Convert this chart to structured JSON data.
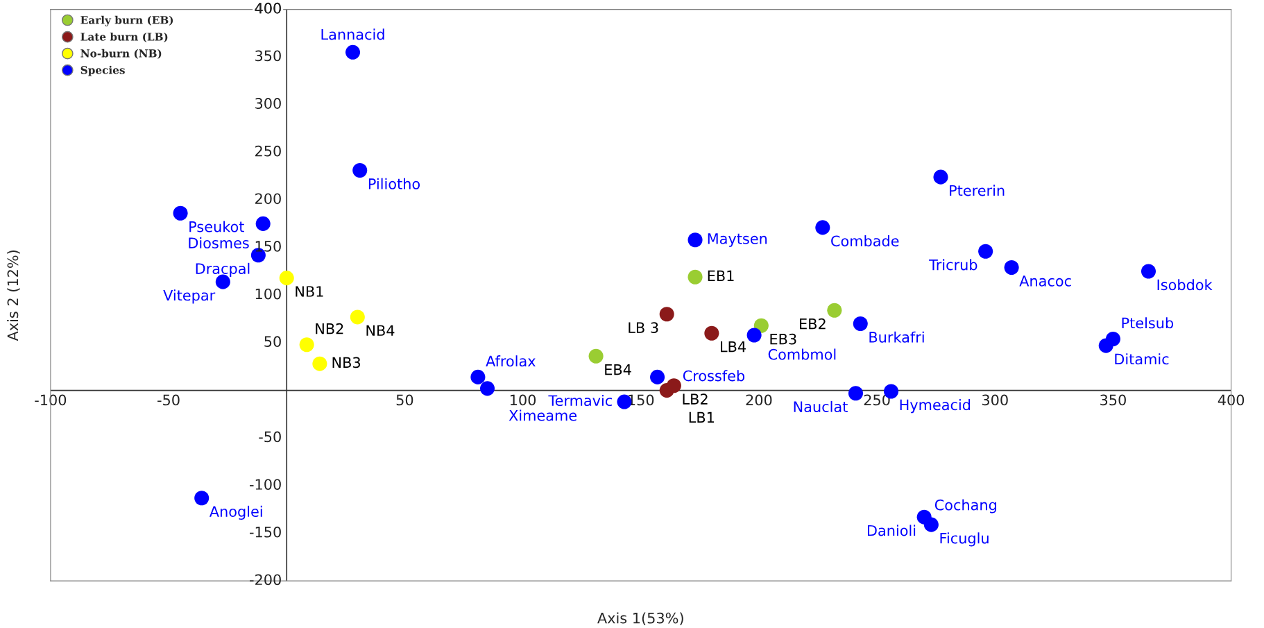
{
  "chart_data": {
    "type": "scatter",
    "xlabel": "Axis 1(53%)",
    "ylabel": "Axis 2 (12%)",
    "xlim": [
      -100,
      400
    ],
    "ylim": [
      -200,
      400
    ],
    "xticks": [
      -100,
      -50,
      50,
      100,
      150,
      200,
      250,
      300,
      350,
      400
    ],
    "yticks": [
      -200,
      -150,
      -100,
      -50,
      50,
      100,
      150,
      200,
      250,
      300,
      350,
      400
    ],
    "legend": "top left",
    "marker": "circle",
    "series": [
      {
        "name": "Early burn (EB)",
        "color": "#9acd32",
        "x": [
          173,
          232,
          201,
          131
        ],
        "values": [
          119,
          84,
          68,
          36
        ]
      },
      {
        "name": "Late burn (LB)",
        "color": "#8b1a1a",
        "x": [
          161,
          164,
          161,
          180
        ],
        "values": [
          0,
          5,
          80,
          60
        ]
      },
      {
        "name": "No-burn (NB)",
        "color": "#ffff00",
        "x": [
          0,
          8.5,
          14,
          30
        ],
        "values": [
          118,
          48,
          28,
          77
        ]
      },
      {
        "name": "Species",
        "color": "#0000ff",
        "x": [
          28,
          31,
          -45,
          -10,
          -12,
          -27,
          81,
          85,
          157,
          143,
          173,
          198,
          243,
          227,
          277,
          296,
          307,
          365,
          347,
          350,
          241,
          256,
          -36,
          270,
          271,
          273
        ],
        "values": [
          355,
          231,
          186,
          175,
          142,
          114,
          14,
          2,
          14,
          -12,
          158,
          58,
          70,
          171,
          224,
          146,
          129,
          125,
          47,
          54,
          -3,
          -1,
          -113,
          -133,
          null,
          -141
        ]
      }
    ],
    "annotations": [
      {
        "text": "EB1",
        "x": 173,
        "y": 119
      },
      {
        "text": "EB2",
        "x": 232,
        "y": 84
      },
      {
        "text": "EB3",
        "x": 201,
        "y": 68
      },
      {
        "text": "EB4",
        "x": 131,
        "y": 36
      },
      {
        "text": "LB1",
        "x": 161,
        "y": 0
      },
      {
        "text": "LB2",
        "x": 164,
        "y": 5
      },
      {
        "text": "LB 3",
        "x": 161,
        "y": 80
      },
      {
        "text": "LB4",
        "x": 180,
        "y": 60
      },
      {
        "text": "NB1",
        "x": 0,
        "y": 118
      },
      {
        "text": "NB2",
        "x": 8.5,
        "y": 48
      },
      {
        "text": "NB3",
        "x": 14,
        "y": 28
      },
      {
        "text": "NB4",
        "x": 30,
        "y": 77
      },
      {
        "text": "Lannacid",
        "x": 28,
        "y": 355
      },
      {
        "text": "Piliotho",
        "x": 31,
        "y": 231
      },
      {
        "text": "Pseukot",
        "x": -45,
        "y": 186
      },
      {
        "text": "Diosmes",
        "x": -10,
        "y": 175
      },
      {
        "text": "Dracpal",
        "x": -12,
        "y": 142
      },
      {
        "text": "Vitepar",
        "x": -27,
        "y": 114
      },
      {
        "text": "Afrolax",
        "x": 81,
        "y": 14
      },
      {
        "text": "Ximeame",
        "x": 85,
        "y": 2
      },
      {
        "text": "Crossfeb",
        "x": 157,
        "y": 14
      },
      {
        "text": "Termavic",
        "x": 143,
        "y": -12
      },
      {
        "text": "Maytsen",
        "x": 173,
        "y": 158
      },
      {
        "text": "Combmol",
        "x": 198,
        "y": 58
      },
      {
        "text": "Burkafri",
        "x": 243,
        "y": 70
      },
      {
        "text": "Combade",
        "x": 227,
        "y": 171
      },
      {
        "text": "Ptererin",
        "x": 277,
        "y": 224
      },
      {
        "text": "Tricrub",
        "x": 296,
        "y": 146
      },
      {
        "text": "Anacoc",
        "x": 307,
        "y": 129
      },
      {
        "text": "Isobdok",
        "x": 365,
        "y": 125
      },
      {
        "text": "Ditamic",
        "x": 347,
        "y": 47
      },
      {
        "text": "Ptelsub",
        "x": 350,
        "y": 54
      },
      {
        "text": "Nauclat",
        "x": 241,
        "y": -3
      },
      {
        "text": "Hymeacid",
        "x": 256,
        "y": -1
      },
      {
        "text": "Anoglei",
        "x": -36,
        "y": -113
      },
      {
        "text": "Danioli",
        "x": 270,
        "y": -133
      },
      {
        "text": "Cochang",
        "x": 271,
        "y": -137
      },
      {
        "text": "Ficuglu",
        "x": 273,
        "y": -141
      }
    ]
  }
}
